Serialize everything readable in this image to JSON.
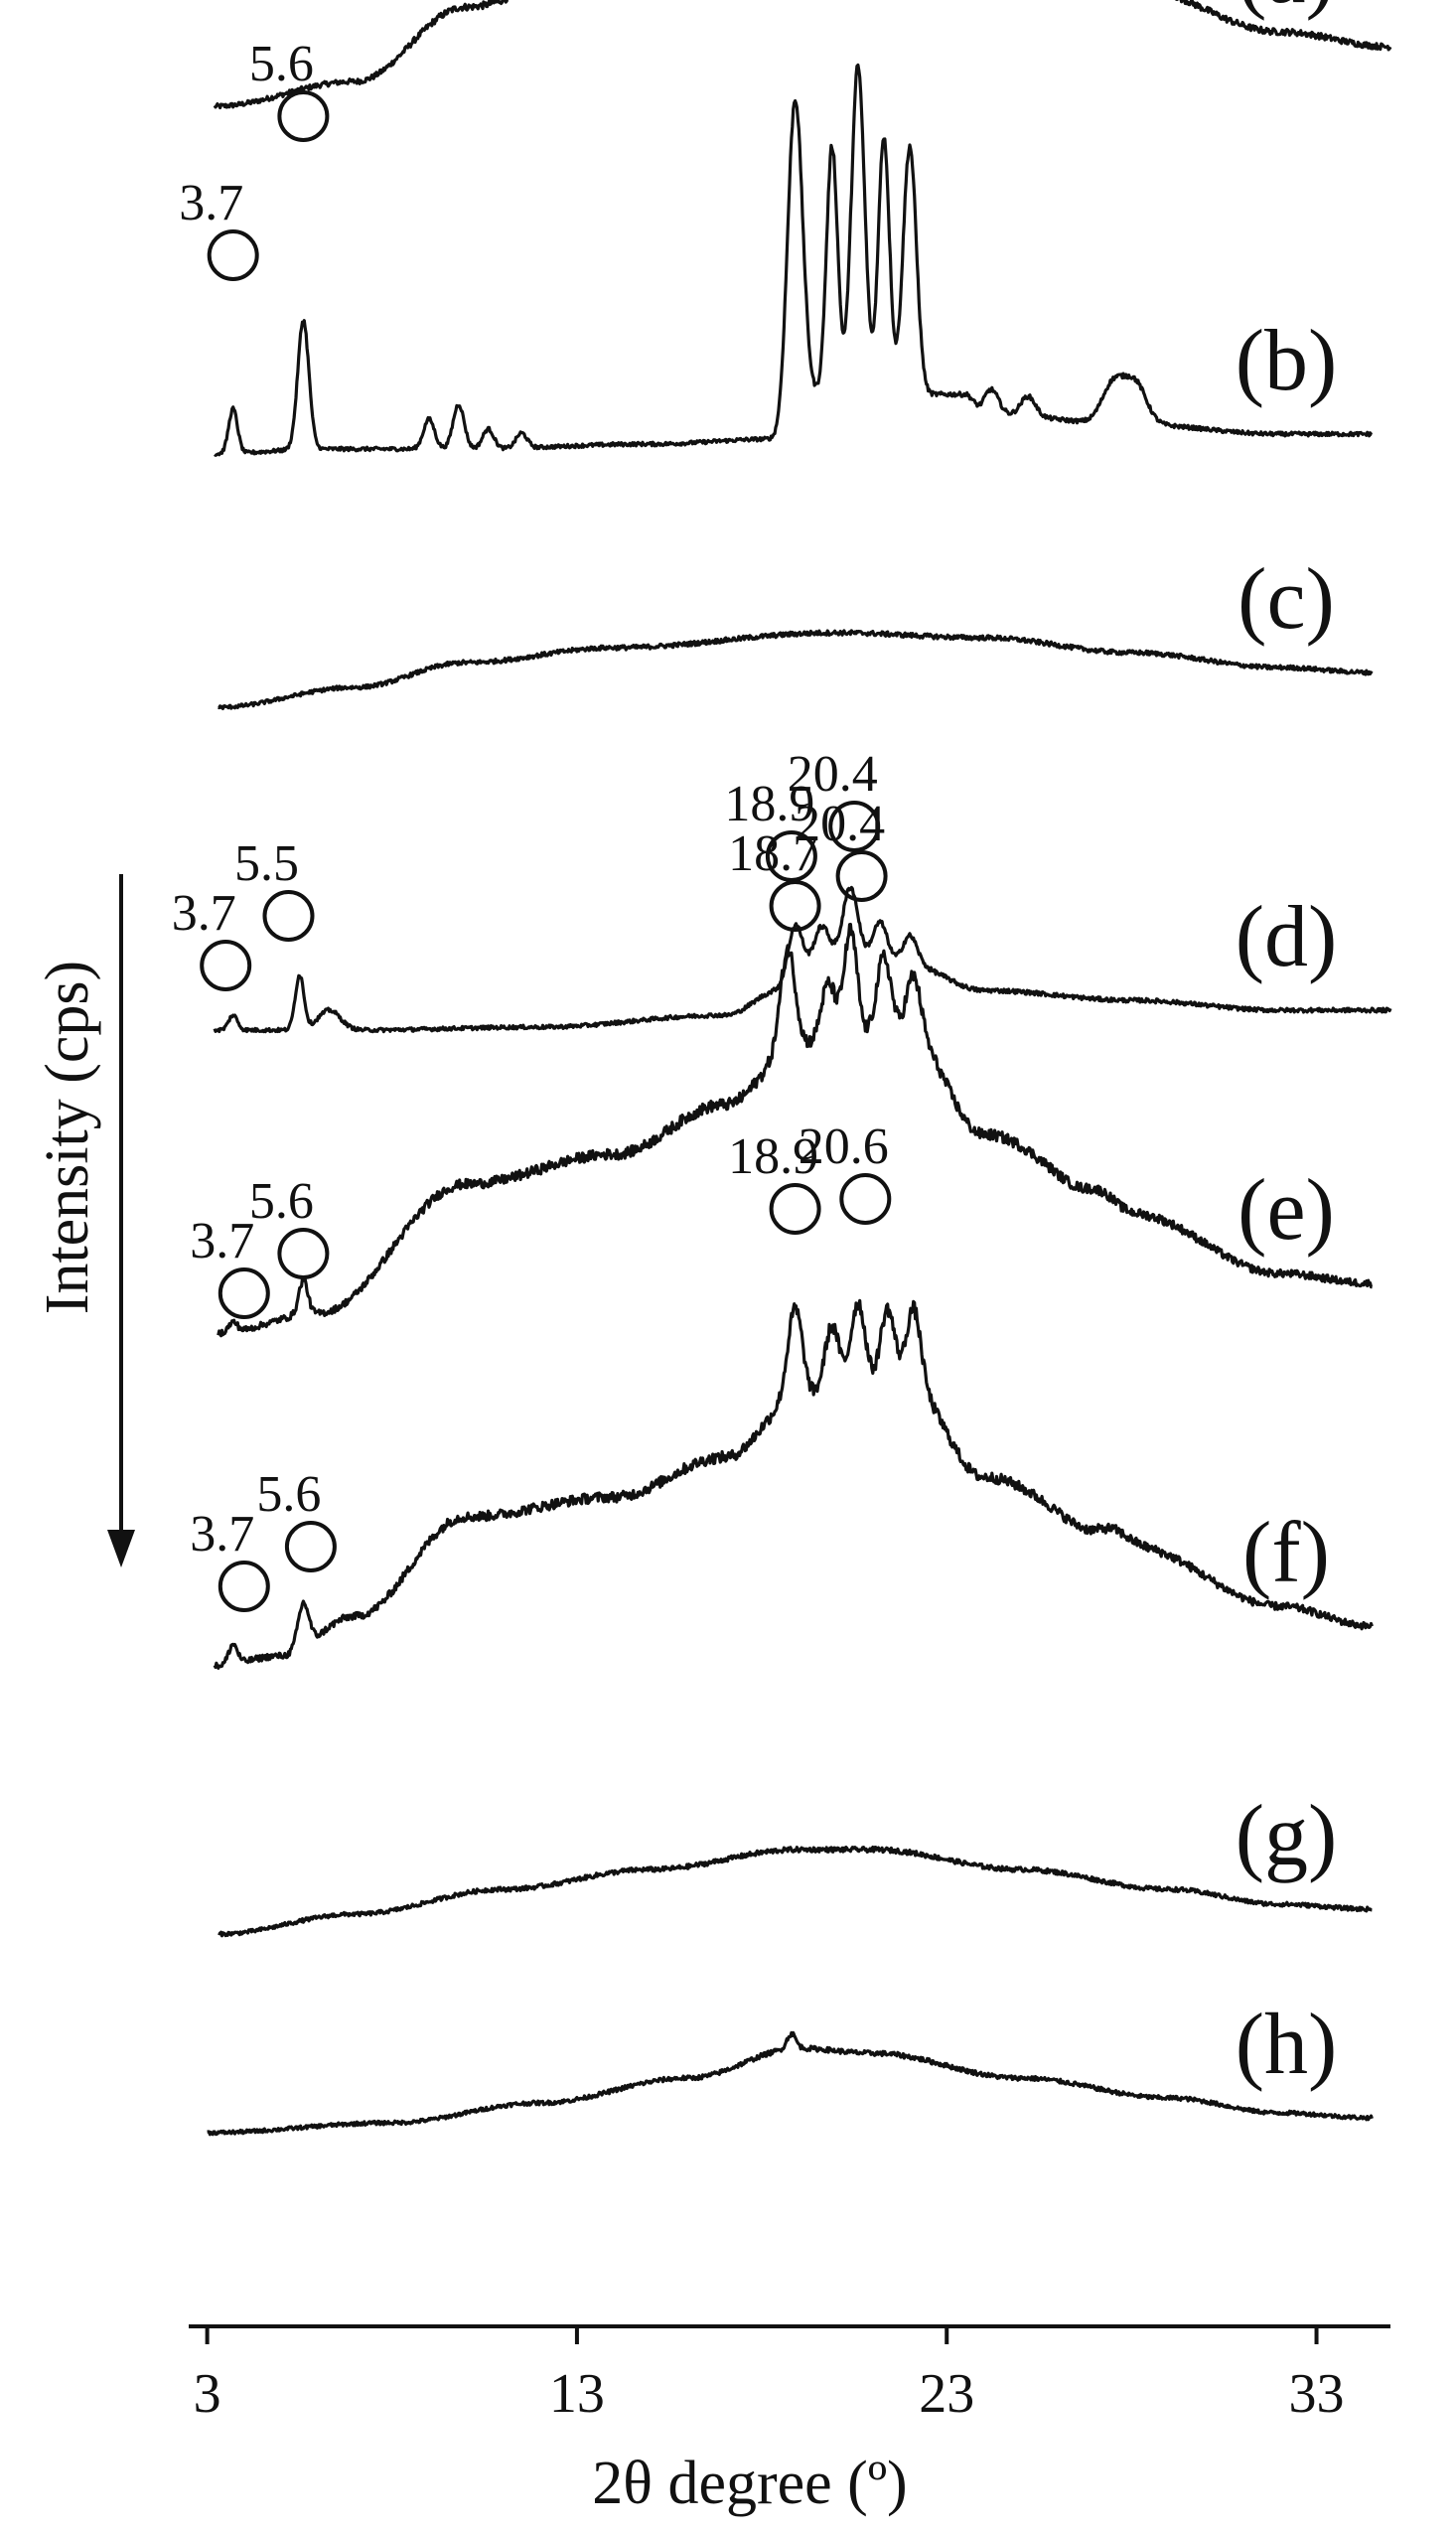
{
  "chart_data": {
    "type": "line",
    "title": "",
    "xlabel": "2θ degree (º)",
    "ylabel": "Intensity (cps)",
    "xlim": [
      2.5,
      35
    ],
    "xticks": [
      3,
      13,
      23,
      33
    ],
    "grid": false,
    "legend": "none",
    "color": "#111111",
    "series": [
      {
        "label": "(a)",
        "offset": 2235,
        "x_start": 3.2,
        "x_end": 35,
        "noise": 4,
        "baseline": [
          [
            3.2,
            0
          ],
          [
            7,
            25
          ],
          [
            10,
            100
          ],
          [
            14,
            150
          ],
          [
            17,
            190
          ],
          [
            20,
            210
          ],
          [
            24,
            180
          ],
          [
            28,
            120
          ],
          [
            32,
            75
          ],
          [
            35,
            60
          ]
        ],
        "peaks": [],
        "markers": []
      },
      {
        "label": "(b)",
        "offset": 1885,
        "x_start": 3.2,
        "x_end": 34.5,
        "noise": 3,
        "baseline": [
          [
            3.2,
            0
          ],
          [
            6,
            5
          ],
          [
            10,
            5
          ],
          [
            15,
            10
          ],
          [
            18.3,
            15
          ],
          [
            19,
            60
          ],
          [
            23.5,
            60
          ],
          [
            24,
            40
          ],
          [
            28,
            30
          ],
          [
            32,
            20
          ],
          [
            34.5,
            20
          ]
        ],
        "peaks": [
          [
            3.7,
            45,
            0.12
          ],
          [
            5.6,
            130,
            0.15
          ],
          [
            9.0,
            30,
            0.15
          ],
          [
            9.8,
            45,
            0.15
          ],
          [
            10.6,
            20,
            0.15
          ],
          [
            11.5,
            15,
            0.15
          ],
          [
            18.9,
            300,
            0.2
          ],
          [
            19.9,
            250,
            0.15
          ],
          [
            20.6,
            330,
            0.18
          ],
          [
            21.3,
            260,
            0.15
          ],
          [
            22.0,
            250,
            0.18
          ],
          [
            24.2,
            25,
            0.2
          ],
          [
            25.2,
            20,
            0.2
          ],
          [
            27.5,
            40,
            0.3
          ],
          [
            28.1,
            40,
            0.3
          ]
        ],
        "markers": [
          {
            "text": "3.7",
            "x": 3.7,
            "y": 200
          },
          {
            "text": "5.6",
            "x": 5.6,
            "y": 340
          },
          {
            "text": "18.9",
            "x": 18.9,
            "y": 640
          },
          {
            "text": "20.6",
            "x": 20.6,
            "y": 690
          }
        ]
      },
      {
        "label": "(c)",
        "offset": 1630,
        "x_start": 3.3,
        "x_end": 34.5,
        "noise": 3,
        "baseline": [
          [
            3.3,
            0
          ],
          [
            7,
            20
          ],
          [
            10,
            45
          ],
          [
            14,
            60
          ],
          [
            20,
            75
          ],
          [
            24,
            70
          ],
          [
            28,
            55
          ],
          [
            32,
            40
          ],
          [
            34.5,
            35
          ]
        ],
        "peaks": [],
        "markers": []
      },
      {
        "label": "(d)",
        "offset": 1300,
        "x_start": 3.2,
        "x_end": 35,
        "noise": 3,
        "baseline": [
          [
            3.2,
            5
          ],
          [
            7,
            5
          ],
          [
            12,
            8
          ],
          [
            17,
            20
          ],
          [
            18.5,
            45
          ],
          [
            20,
            80
          ],
          [
            22,
            70
          ],
          [
            24,
            45
          ],
          [
            28,
            35
          ],
          [
            32,
            25
          ],
          [
            35,
            25
          ]
        ],
        "peaks": [
          [
            3.7,
            15,
            0.12
          ],
          [
            5.5,
            55,
            0.12
          ],
          [
            6.3,
            20,
            0.3
          ],
          [
            18.9,
            60,
            0.2
          ],
          [
            19.6,
            35,
            0.2
          ],
          [
            20.4,
            70,
            0.2
          ],
          [
            21.2,
            40,
            0.2
          ],
          [
            22.0,
            30,
            0.2
          ]
        ],
        "markers": [
          {
            "text": "3.7",
            "x": 3.5,
            "y": 70
          },
          {
            "text": "5.5",
            "x": 5.2,
            "y": 120
          },
          {
            "text": "18.9",
            "x": 18.8,
            "y": 180
          },
          {
            "text": "20.4",
            "x": 20.5,
            "y": 210
          }
        ]
      },
      {
        "label": "(e)",
        "offset": 1000,
        "x_start": 3.3,
        "x_end": 34.5,
        "noise": 5,
        "baseline": [
          [
            3.3,
            0
          ],
          [
            6,
            20
          ],
          [
            10,
            150
          ],
          [
            14,
            180
          ],
          [
            17,
            230
          ],
          [
            19,
            290
          ],
          [
            22,
            300
          ],
          [
            24,
            200
          ],
          [
            28,
            120
          ],
          [
            32,
            60
          ],
          [
            34.5,
            50
          ]
        ],
        "peaks": [
          [
            3.7,
            10,
            0.12
          ],
          [
            5.6,
            35,
            0.12
          ],
          [
            18.7,
            100,
            0.2
          ],
          [
            19.8,
            60,
            0.2
          ],
          [
            20.4,
            110,
            0.18
          ],
          [
            21.3,
            80,
            0.2
          ],
          [
            22.1,
            60,
            0.2
          ],
          [
            27.2,
            15,
            0.4
          ]
        ],
        "markers": [
          {
            "text": "3.7",
            "x": 4.0,
            "y": 40
          },
          {
            "text": "5.6",
            "x": 5.6,
            "y": 80
          },
          {
            "text": "18.7",
            "x": 18.9,
            "y": 430
          },
          {
            "text": "20.4",
            "x": 20.7,
            "y": 460
          }
        ]
      },
      {
        "label": "(f)",
        "offset": 665,
        "x_start": 3.2,
        "x_end": 34.5,
        "noise": 5,
        "baseline": [
          [
            3.2,
            0
          ],
          [
            5,
            10
          ],
          [
            7,
            50
          ],
          [
            10,
            150
          ],
          [
            14,
            170
          ],
          [
            17,
            210
          ],
          [
            19,
            270
          ],
          [
            22,
            280
          ],
          [
            24,
            190
          ],
          [
            28,
            120
          ],
          [
            32,
            60
          ],
          [
            34.5,
            40
          ]
        ],
        "peaks": [
          [
            3.7,
            20,
            0.12
          ],
          [
            5.6,
            45,
            0.15
          ],
          [
            18.9,
            90,
            0.2
          ],
          [
            19.9,
            70,
            0.2
          ],
          [
            20.6,
            90,
            0.2
          ],
          [
            21.4,
            80,
            0.2
          ],
          [
            22.1,
            80,
            0.2
          ],
          [
            27.5,
            15,
            0.4
          ]
        ],
        "markers": [
          {
            "text": "3.7",
            "x": 4.0,
            "y": 80
          },
          {
            "text": "5.6",
            "x": 5.8,
            "y": 120
          },
          {
            "text": "18.9",
            "x": 18.9,
            "y": 460
          },
          {
            "text": "20.6",
            "x": 20.8,
            "y": 470
          }
        ]
      },
      {
        "label": "(g)",
        "offset": 395,
        "x_start": 3.3,
        "x_end": 34.5,
        "noise": 3,
        "baseline": [
          [
            3.3,
            0
          ],
          [
            7,
            20
          ],
          [
            11,
            45
          ],
          [
            15,
            65
          ],
          [
            19,
            85
          ],
          [
            21,
            85
          ],
          [
            25,
            65
          ],
          [
            29,
            45
          ],
          [
            32,
            30
          ],
          [
            34.5,
            25
          ]
        ],
        "peaks": [],
        "markers": []
      },
      {
        "label": "(h)",
        "offset": 195,
        "x_start": 3.0,
        "x_end": 34.5,
        "noise": 3,
        "baseline": [
          [
            3.0,
            0
          ],
          [
            8,
            10
          ],
          [
            12,
            30
          ],
          [
            16,
            55
          ],
          [
            19,
            85
          ],
          [
            21,
            80
          ],
          [
            25,
            55
          ],
          [
            29,
            35
          ],
          [
            32,
            20
          ],
          [
            34.5,
            15
          ]
        ],
        "peaks": [
          [
            18.8,
            15,
            0.12
          ]
        ],
        "markers": []
      }
    ]
  }
}
